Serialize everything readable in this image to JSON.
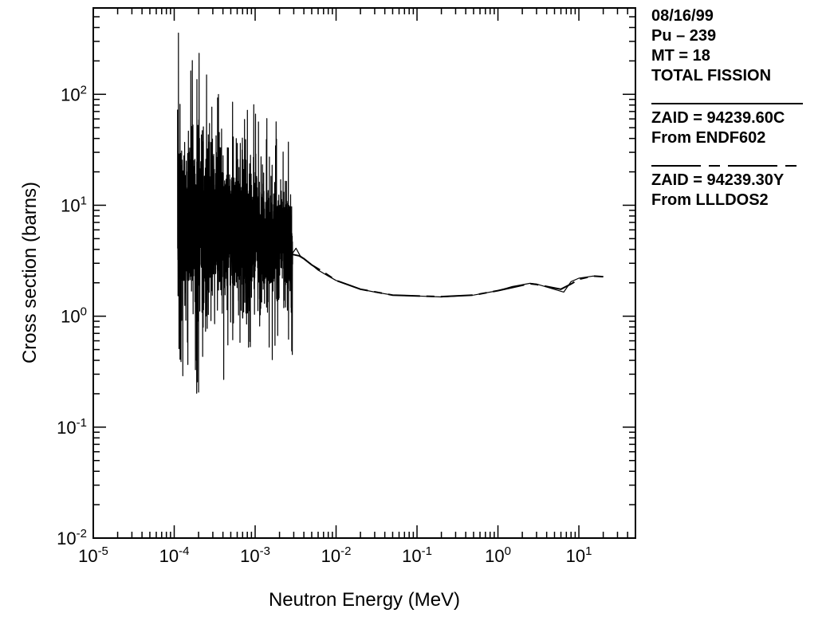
{
  "chart_data": {
    "type": "line",
    "xlabel": "Neutron Energy (MeV)",
    "ylabel": "Cross section (barns)",
    "xscale": "log",
    "yscale": "log",
    "xlim": [
      1e-05,
      50
    ],
    "ylim": [
      0.01,
      600
    ],
    "grid": false,
    "legend_position": "right",
    "xticks": [
      {
        "value": 1e-05,
        "base": "10",
        "exp": "-5"
      },
      {
        "value": 0.0001,
        "base": "10",
        "exp": "-4"
      },
      {
        "value": 0.001,
        "base": "10",
        "exp": "-3"
      },
      {
        "value": 0.01,
        "base": "10",
        "exp": "-2"
      },
      {
        "value": 0.1,
        "base": "10",
        "exp": "-1"
      },
      {
        "value": 1,
        "base": "10",
        "exp": "0"
      },
      {
        "value": 10,
        "base": "10",
        "exp": "1"
      }
    ],
    "yticks": [
      {
        "value": 0.01,
        "base": "10",
        "exp": "-2"
      },
      {
        "value": 0.1,
        "base": "10",
        "exp": "-1"
      },
      {
        "value": 1,
        "base": "10",
        "exp": "0"
      },
      {
        "value": 10,
        "base": "10",
        "exp": "1"
      },
      {
        "value": 100,
        "base": "10",
        "exp": "2"
      }
    ],
    "series": [
      {
        "legend": [
          "ZAID = 94239.60C",
          "From ENDF602"
        ],
        "dash": "solid",
        "resonance_region": {
          "x_start": 0.00011,
          "x_end": 0.0029,
          "y_min": 0.07,
          "y_max": 380,
          "y_typical": 8
        },
        "x": [
          0.0029,
          0.0032,
          0.0036,
          0.004,
          0.005,
          0.006,
          0.008,
          0.01,
          0.015,
          0.02,
          0.03,
          0.05,
          0.1,
          0.2,
          0.5,
          1,
          1.5,
          2.5,
          3,
          6.5,
          8,
          10,
          15,
          20
        ],
        "y": [
          3.7,
          4.1,
          3.5,
          3.3,
          2.9,
          2.6,
          2.3,
          2.1,
          1.9,
          1.75,
          1.65,
          1.55,
          1.52,
          1.49,
          1.55,
          1.7,
          1.85,
          1.98,
          1.95,
          1.65,
          2.05,
          2.2,
          2.3,
          2.28
        ]
      },
      {
        "legend": [
          "ZAID = 94239.30Y",
          "From LLLDOS2"
        ],
        "dash": "long-short",
        "x": [
          0.0029,
          0.0035,
          0.004,
          0.005,
          0.007,
          0.01,
          0.02,
          0.05,
          0.1,
          0.2,
          0.5,
          1,
          2,
          2.5,
          3,
          6,
          8,
          10,
          15,
          20
        ],
        "y": [
          3.6,
          3.5,
          3.3,
          2.9,
          2.5,
          2.1,
          1.75,
          1.55,
          1.52,
          1.5,
          1.55,
          1.7,
          1.9,
          1.96,
          1.93,
          1.75,
          1.95,
          2.15,
          2.3,
          2.27
        ]
      }
    ]
  },
  "header_lines": [
    "08/16/99",
    "Pu – 239",
    "MT = 18",
    "TOTAL FISSION"
  ]
}
